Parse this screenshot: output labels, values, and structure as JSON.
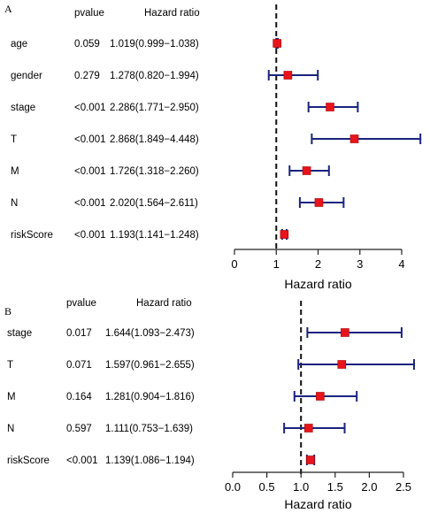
{
  "chart_data": [
    {
      "type": "forest",
      "panel": "A",
      "headers": {
        "pvalue": "pvalue",
        "hazard_ratio": "Hazard ratio"
      },
      "xlabel": "Hazard ratio",
      "xlim": [
        0,
        4
      ],
      "ticks": [
        0,
        1,
        2,
        3,
        4
      ],
      "tick_labels": [
        "0",
        "1",
        "2",
        "3",
        "4"
      ],
      "reference_line": 1,
      "rows": [
        {
          "variable": "age",
          "pvalue": "0.059",
          "hr_text": "1.019(0.999−1.038)",
          "hr": 1.019,
          "lower": 0.999,
          "upper": 1.038
        },
        {
          "variable": "gender",
          "pvalue": "0.279",
          "hr_text": "1.278(0.820−1.994)",
          "hr": 1.278,
          "lower": 0.82,
          "upper": 1.994
        },
        {
          "variable": "stage",
          "pvalue": "<0.001",
          "hr_text": "2.286(1.771−2.950)",
          "hr": 2.286,
          "lower": 1.771,
          "upper": 2.95
        },
        {
          "variable": "T",
          "pvalue": "<0.001",
          "hr_text": "2.868(1.849−4.448)",
          "hr": 2.868,
          "lower": 1.849,
          "upper": 4.448
        },
        {
          "variable": "M",
          "pvalue": "<0.001",
          "hr_text": "1.726(1.318−2.260)",
          "hr": 1.726,
          "lower": 1.318,
          "upper": 2.26
        },
        {
          "variable": "N",
          "pvalue": "<0.001",
          "hr_text": "2.020(1.564−2.611)",
          "hr": 2.02,
          "lower": 1.564,
          "upper": 2.611
        },
        {
          "variable": "riskScore",
          "pvalue": "<0.001",
          "hr_text": "1.193(1.141−1.248)",
          "hr": 1.193,
          "lower": 1.141,
          "upper": 1.248
        }
      ]
    },
    {
      "type": "forest",
      "panel": "B",
      "headers": {
        "pvalue": "pvalue",
        "hazard_ratio": "Hazard ratio"
      },
      "xlabel": "Hazard ratio",
      "xlim": [
        0,
        2.5
      ],
      "ticks": [
        0,
        0.5,
        1,
        1.5,
        2,
        2.5
      ],
      "tick_labels": [
        "0.0",
        "0.5",
        "1.0",
        "1.5",
        "2.0",
        "2.5"
      ],
      "reference_line": 1,
      "rows": [
        {
          "variable": "stage",
          "pvalue": "0.017",
          "hr_text": "1.644(1.093−2.473)",
          "hr": 1.644,
          "lower": 1.093,
          "upper": 2.473
        },
        {
          "variable": "T",
          "pvalue": "0.071",
          "hr_text": "1.597(0.961−2.655)",
          "hr": 1.597,
          "lower": 0.961,
          "upper": 2.655
        },
        {
          "variable": "M",
          "pvalue": "0.164",
          "hr_text": "1.281(0.904−1.816)",
          "hr": 1.281,
          "lower": 0.904,
          "upper": 1.816
        },
        {
          "variable": "N",
          "pvalue": "0.597",
          "hr_text": "1.111(0.753−1.639)",
          "hr": 1.111,
          "lower": 0.753,
          "upper": 1.639
        },
        {
          "variable": "riskScore",
          "pvalue": "<0.001",
          "hr_text": "1.139(1.086−1.194)",
          "hr": 1.139,
          "lower": 1.086,
          "upper": 1.194
        }
      ]
    }
  ],
  "colors": {
    "point": "#e8141c",
    "point_edge": "#a00000",
    "ci_line": "#1a237e",
    "axis": "#222222",
    "ref_line": "#111111"
  }
}
